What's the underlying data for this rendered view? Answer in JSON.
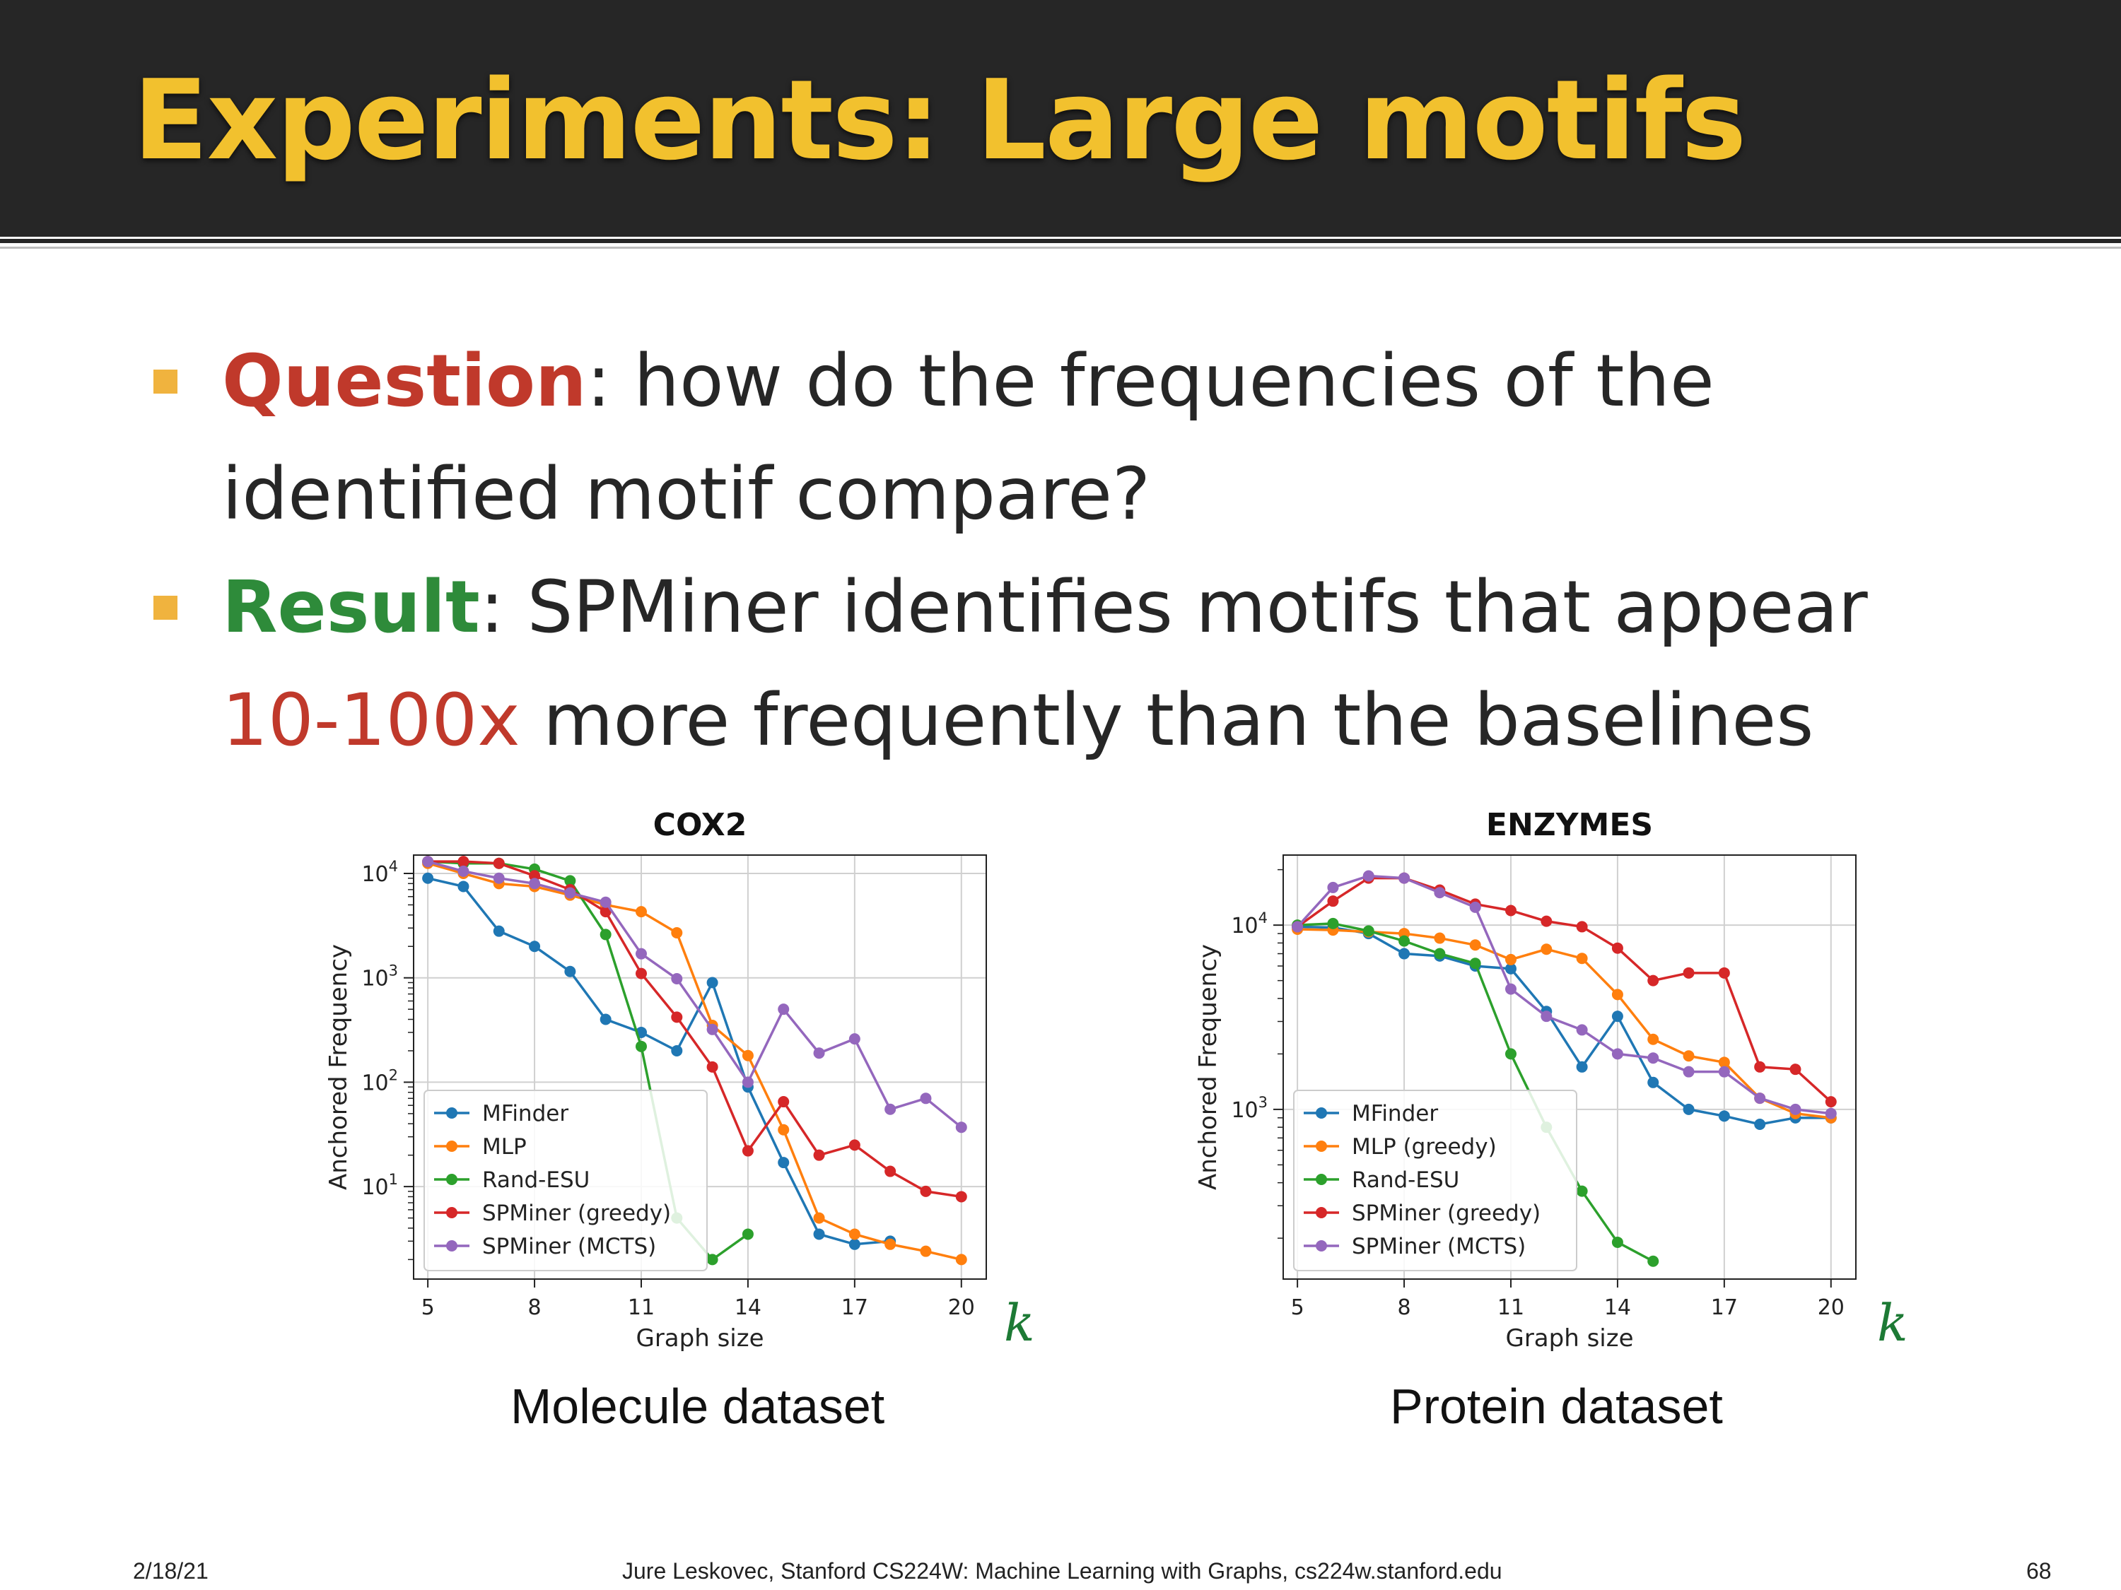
{
  "slide": {
    "title": "Experiments: Large motifs",
    "bullets": [
      {
        "keyword": "Question",
        "lines": [
          ": how do the frequencies of the",
          "identified motif compare?"
        ]
      },
      {
        "keyword": "Result",
        "line1": ": SPMiner identifies motifs that appear",
        "highlight": "10-100x",
        "line2_rest": " more frequently than the baselines"
      }
    ],
    "bullet_color": "#f0b33e",
    "question_color": "#c0392b",
    "result_color": "#2e8b3a",
    "highlight_color": "#c0392b",
    "captions": [
      "Molecule dataset",
      "Protein dataset"
    ],
    "k_label": "k",
    "footer": {
      "date": "2/18/21",
      "center": "Jure Leskovec, Stanford CS224W: Machine Learning with Graphs, cs224w.stanford.edu",
      "page": "68"
    }
  },
  "chart_data": [
    {
      "type": "line",
      "title": "COX2",
      "xlabel": "Graph size",
      "ylabel": "Anchored Frequency",
      "yscale": "log",
      "xlim": [
        4.6,
        20.7
      ],
      "ylim": [
        1.3,
        15000
      ],
      "xticks": [
        5,
        8,
        11,
        14,
        17,
        20
      ],
      "yticks": [
        {
          "value": 10,
          "base": "10",
          "exp": "1"
        },
        {
          "value": 100,
          "base": "10",
          "exp": "2"
        },
        {
          "value": 1000,
          "base": "10",
          "exp": "3"
        },
        {
          "value": 10000,
          "base": "10",
          "exp": "4"
        }
      ],
      "grid": true,
      "legend_position": "lower-left",
      "series": [
        {
          "name": "MFinder",
          "color": "#1f77b4",
          "x": [
            5,
            6,
            7,
            8,
            9,
            10,
            11,
            12,
            13,
            14,
            15,
            16,
            17,
            18
          ],
          "y": [
            9000,
            7500,
            2800,
            2000,
            1150,
            400,
            300,
            200,
            900,
            90,
            17,
            3.5,
            2.8,
            3.0
          ]
        },
        {
          "name": "MLP",
          "color": "#ff7f0e",
          "x": [
            5,
            6,
            7,
            8,
            9,
            10,
            11,
            12,
            13,
            14,
            15,
            16,
            17,
            18,
            19,
            20
          ],
          "y": [
            12500,
            10000,
            8000,
            7500,
            6200,
            5000,
            4300,
            2700,
            350,
            180,
            35,
            5,
            3.5,
            2.8,
            2.4,
            2.0
          ]
        },
        {
          "name": "Rand-ESU",
          "color": "#2ca02c",
          "x": [
            5,
            6,
            7,
            8,
            9,
            10,
            11,
            12,
            13,
            14
          ],
          "y": [
            13000,
            12500,
            12500,
            11000,
            8500,
            2600,
            220,
            5,
            2,
            3.5
          ]
        },
        {
          "name": "SPMiner (greedy)",
          "color": "#d62728",
          "x": [
            5,
            6,
            7,
            8,
            9,
            10,
            11,
            12,
            13,
            14,
            15,
            16,
            17,
            18,
            19,
            20
          ],
          "y": [
            13000,
            13000,
            12500,
            9500,
            7000,
            4300,
            1100,
            420,
            140,
            22,
            65,
            20,
            25,
            14,
            9,
            8
          ]
        },
        {
          "name": "SPMiner (MCTS)",
          "color": "#9467bd",
          "x": [
            5,
            6,
            7,
            8,
            9,
            10,
            11,
            12,
            13,
            14,
            15,
            16,
            17,
            18,
            19,
            20
          ],
          "y": [
            13000,
            10500,
            9000,
            8000,
            6500,
            5300,
            1700,
            980,
            320,
            100,
            500,
            190,
            260,
            55,
            70,
            37
          ]
        }
      ]
    },
    {
      "type": "line",
      "title": "ENZYMES",
      "xlabel": "Graph size",
      "ylabel": "Anchored Frequency",
      "yscale": "log",
      "xlim": [
        4.6,
        20.7
      ],
      "ylim": [
        120,
        24000
      ],
      "xticks": [
        5,
        8,
        11,
        14,
        17,
        20
      ],
      "yticks": [
        {
          "value": 1000,
          "base": "10",
          "exp": "3"
        },
        {
          "value": 10000,
          "base": "10",
          "exp": "4"
        }
      ],
      "grid": true,
      "legend_position": "lower-left",
      "series": [
        {
          "name": "MFinder",
          "color": "#1f77b4",
          "x": [
            5,
            6,
            7,
            8,
            9,
            10,
            11,
            12,
            13,
            14,
            15,
            16,
            17,
            18,
            19,
            20
          ],
          "y": [
            9800,
            9700,
            9000,
            7000,
            6800,
            6000,
            5800,
            3400,
            1700,
            3200,
            1400,
            1000,
            920,
            830,
            900,
            900
          ]
        },
        {
          "name": "MLP (greedy)",
          "color": "#ff7f0e",
          "x": [
            5,
            6,
            7,
            8,
            9,
            10,
            11,
            12,
            13,
            14,
            15,
            16,
            17,
            18,
            19,
            20
          ],
          "y": [
            9500,
            9400,
            9200,
            9000,
            8500,
            7800,
            6500,
            7400,
            6600,
            4200,
            2400,
            1950,
            1800,
            1150,
            950,
            900
          ]
        },
        {
          "name": "Rand-ESU",
          "color": "#2ca02c",
          "x": [
            5,
            6,
            7,
            8,
            9,
            10,
            11,
            12,
            13,
            14,
            15
          ],
          "y": [
            10000,
            10200,
            9300,
            8200,
            7000,
            6200,
            2000,
            800,
            360,
            190,
            150
          ]
        },
        {
          "name": "SPMiner (greedy)",
          "color": "#d62728",
          "x": [
            5,
            6,
            7,
            8,
            9,
            10,
            11,
            12,
            13,
            14,
            15,
            16,
            17,
            18,
            19,
            20
          ],
          "y": [
            9800,
            13500,
            18000,
            18000,
            15500,
            13000,
            12000,
            10500,
            9800,
            7500,
            5000,
            5500,
            5500,
            1700,
            1650,
            1100
          ]
        },
        {
          "name": "SPMiner (MCTS)",
          "color": "#9467bd",
          "x": [
            5,
            6,
            7,
            8,
            9,
            10,
            11,
            12,
            13,
            14,
            15,
            16,
            17,
            18,
            19,
            20
          ],
          "y": [
            9800,
            16000,
            18500,
            18000,
            15000,
            12500,
            4500,
            3200,
            2700,
            2000,
            1900,
            1600,
            1600,
            1150,
            1000,
            950
          ]
        }
      ]
    }
  ]
}
